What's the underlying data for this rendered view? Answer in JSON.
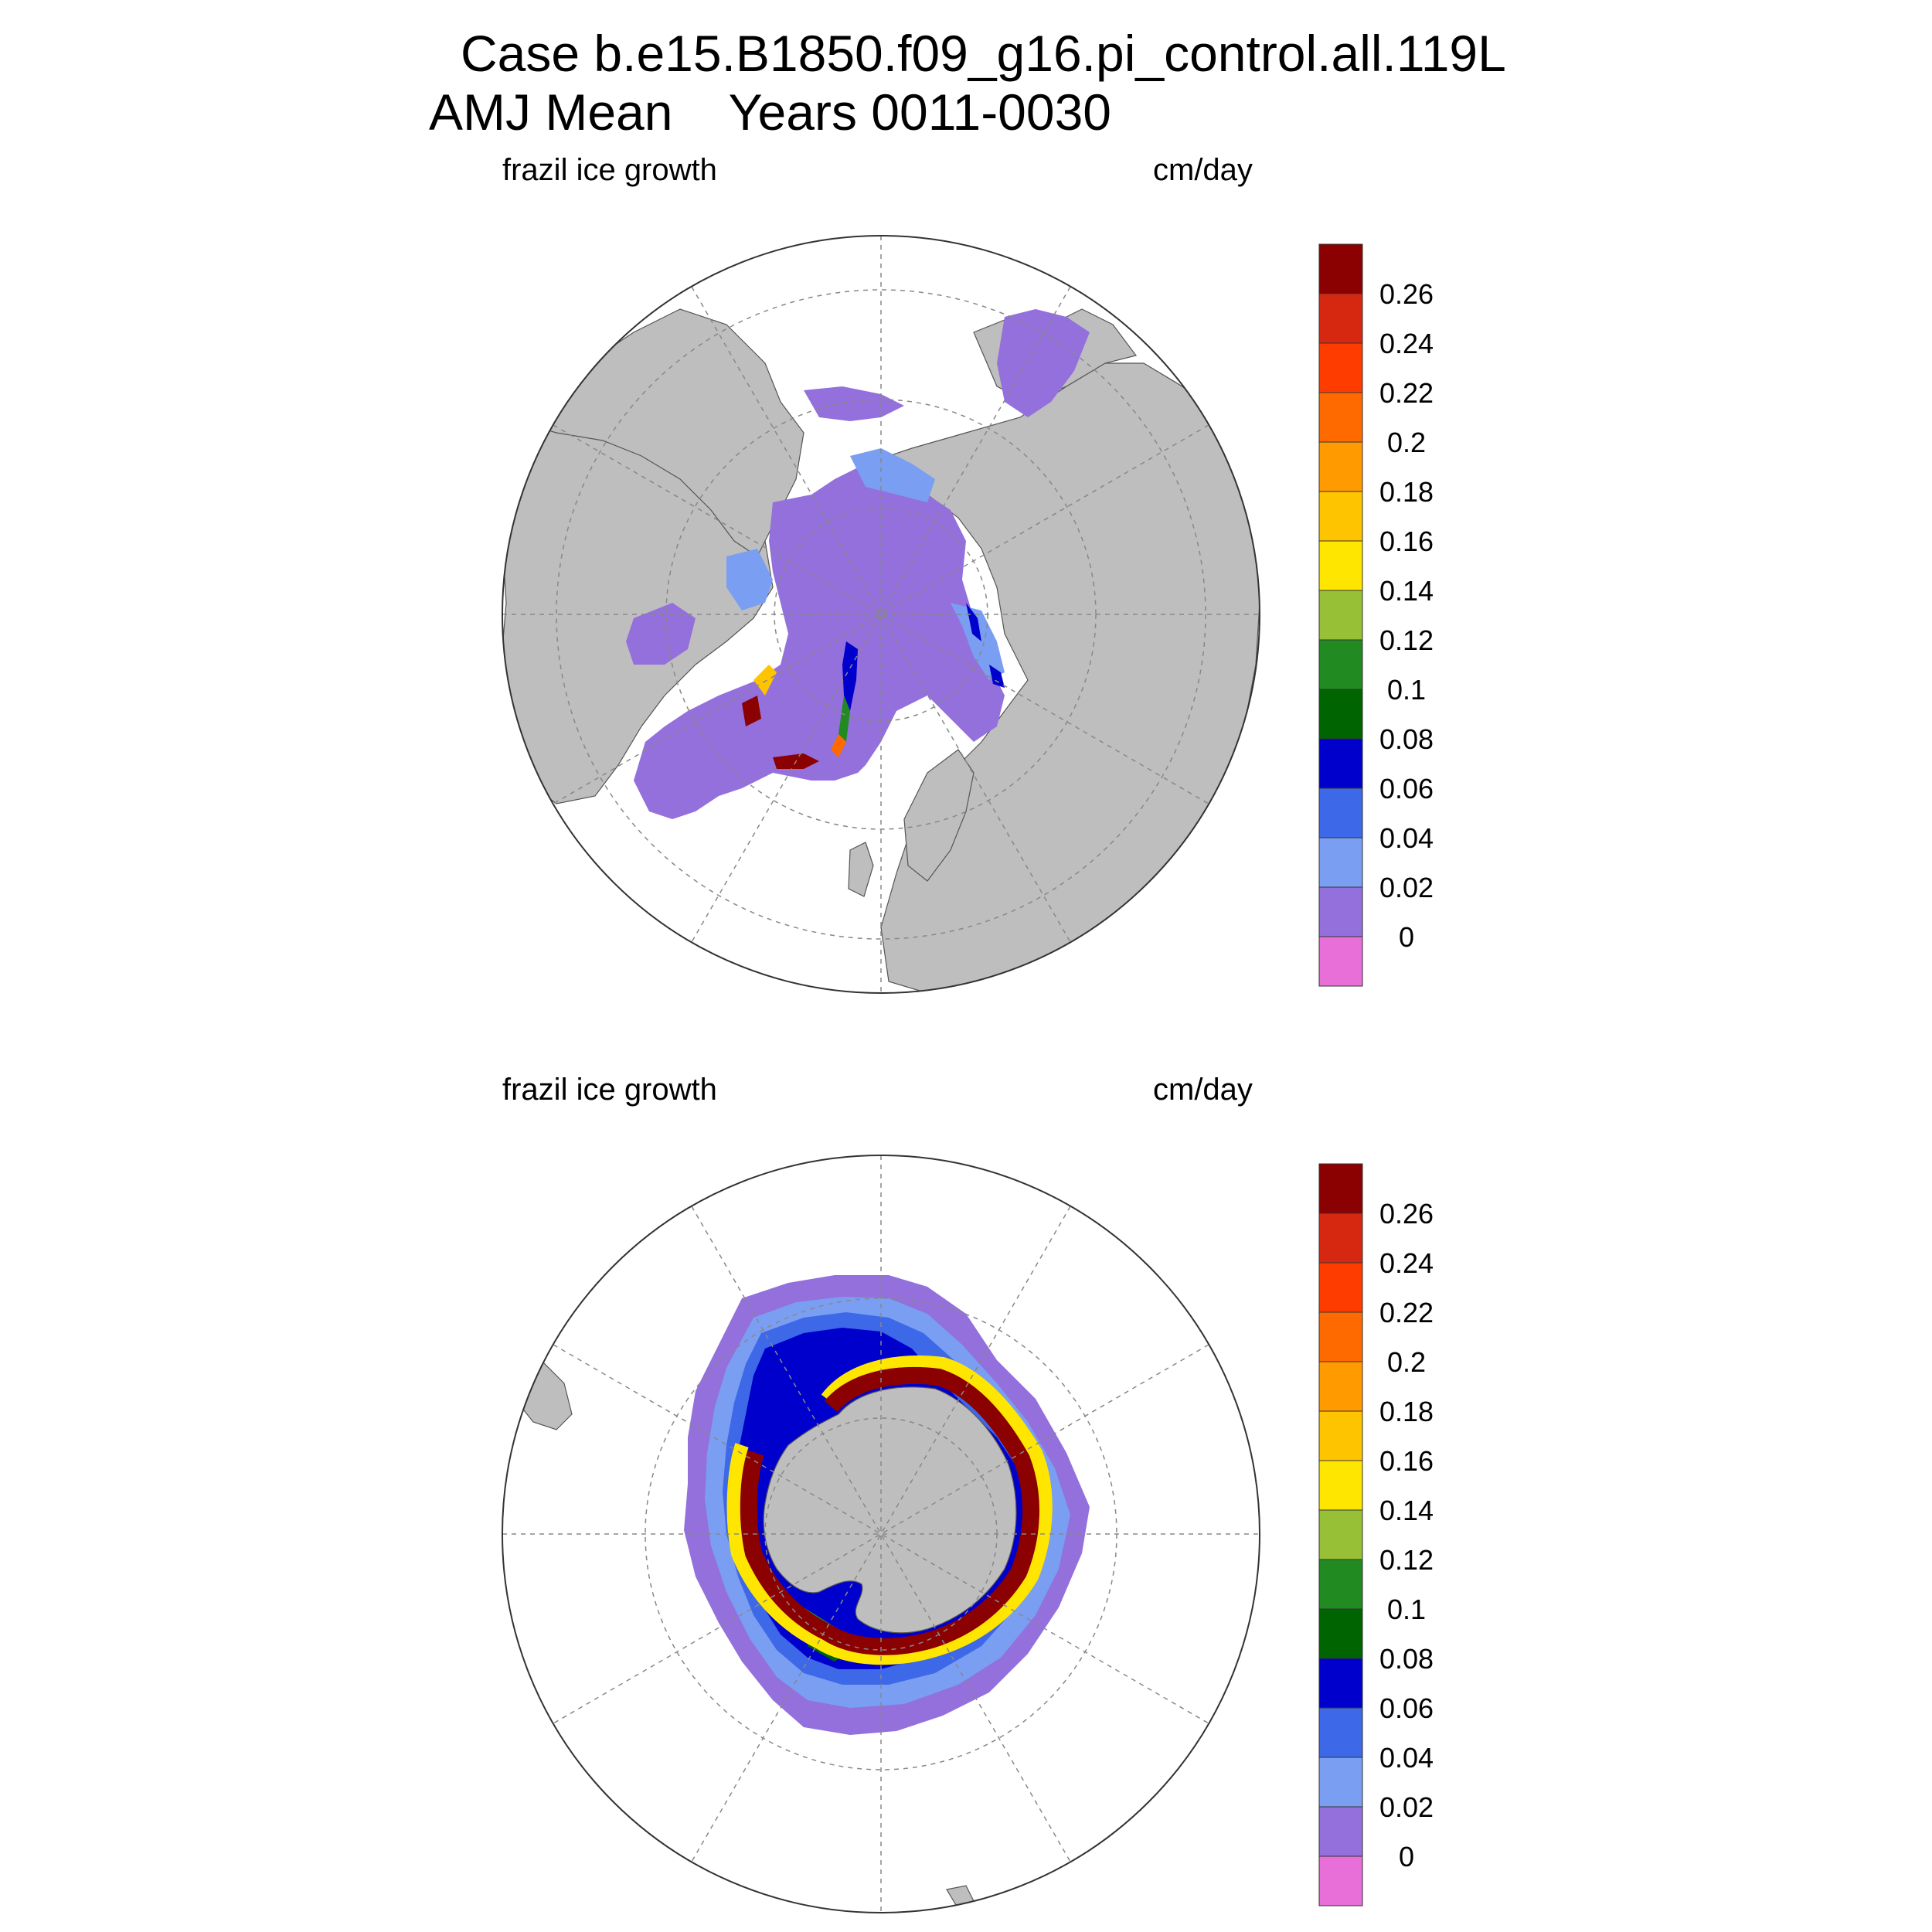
{
  "title_line1": "Case b.e15.B1850.f09_g16.pi_control.all.119L",
  "title_line2": "AMJ Mean    Years 0011-0030",
  "panels": [
    {
      "id": "north",
      "hemisphere": "Northern Hemisphere polar stereographic",
      "left_label": "frazil ice growth",
      "right_label": "cm/day"
    },
    {
      "id": "south",
      "hemisphere": "Southern Hemisphere polar stereographic",
      "left_label": "frazil ice growth",
      "right_label": "cm/day"
    }
  ],
  "colorbar": {
    "labels": [
      "0.26",
      "0.24",
      "0.22",
      "0.2",
      "0.18",
      "0.16",
      "0.14",
      "0.12",
      "0.1",
      "0.08",
      "0.06",
      "0.04",
      "0.02",
      "0"
    ],
    "colors": [
      "#8b0000",
      "#d62810",
      "#ff3c00",
      "#ff6a00",
      "#ff9a00",
      "#ffc400",
      "#ffe600",
      "#98c036",
      "#218a21",
      "#006400",
      "#0000cd",
      "#3d68e8",
      "#7a9ef2",
      "#9370db",
      "#e86fd8"
    ]
  },
  "colors": {
    "land": "#bebebe",
    "ocean_open": "#ffffff",
    "grid": "#888888",
    "outline": "#444444"
  }
}
